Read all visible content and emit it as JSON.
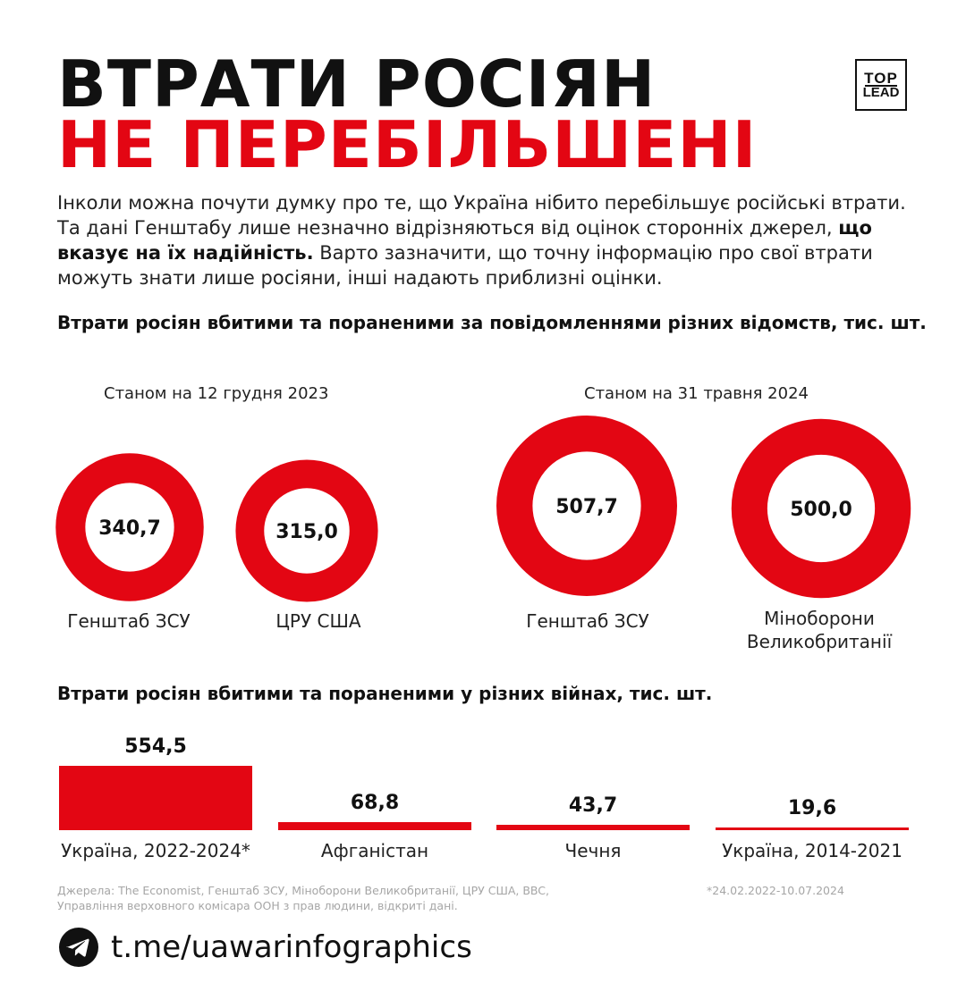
{
  "header": {
    "title_line1": "ВТРАТИ РОСІЯН",
    "title_line2": "НЕ ПЕРЕБІЛЬШЕНІ",
    "logo_top": "TOP",
    "logo_bottom": "LEAD"
  },
  "intro": {
    "text_before": "Інколи можна почути думку про те, що Україна нібито перебільшує російські втрати. Та дані Генштабу лише незначно відрізняються від оцінок сторонніх джерел, ",
    "text_bold": "що вказує на їх надійність.",
    "text_after": " Варто зазначити, що точну інформацію про свої втрати можуть знати лише росіяни, інші надають приблизні оцінки."
  },
  "colors": {
    "accent": "#e30613",
    "text": "#111111",
    "muted": "#a6a6a6"
  },
  "chart_data": [
    {
      "type": "pie",
      "title": "Втрати росіян вбитими та пораненими за повідомленнями різних відомств, тис. шт.",
      "groups": [
        {
          "label": "Станом на 12 грудня 2023",
          "items": [
            {
              "name": "Генштаб ЗСУ",
              "value": 340.7,
              "display": "340,7"
            },
            {
              "name": "ЦРУ США",
              "value": 315.0,
              "display": "315,0"
            }
          ]
        },
        {
          "label": "Станом на 31 травня 2024",
          "items": [
            {
              "name": "Генштаб ЗСУ",
              "value": 507.7,
              "display": "507,7"
            },
            {
              "name_line1": "Міноборони",
              "name_line2": "Великобританії",
              "value": 500.0,
              "display": "500,0"
            }
          ]
        }
      ]
    },
    {
      "type": "bar",
      "title": "Втрати росіян вбитими та пораненими у різних війнах, тис. шт.",
      "categories": [
        "Україна, 2022-2024*",
        "Афганістан",
        "Чечня",
        "Україна, 2014-2021"
      ],
      "values": [
        554.5,
        68.8,
        43.7,
        19.6
      ],
      "value_labels": [
        "554,5",
        "68,8",
        "43,7",
        "19,6"
      ],
      "ylim": [
        0,
        554.5
      ]
    }
  ],
  "footer": {
    "sources_line1": "Джерела: The Economist, Генштаб ЗСУ, Міноборони Великобританії, ЦРУ США, BBC,",
    "sources_line2": "Управління верховного комісара ООН з прав людини, відкриті дані.",
    "footnote": "*24.02.2022-10.07.2024",
    "telegram_link": "t.me/uawarinfographics",
    "telegram_icon": "telegram-icon"
  }
}
